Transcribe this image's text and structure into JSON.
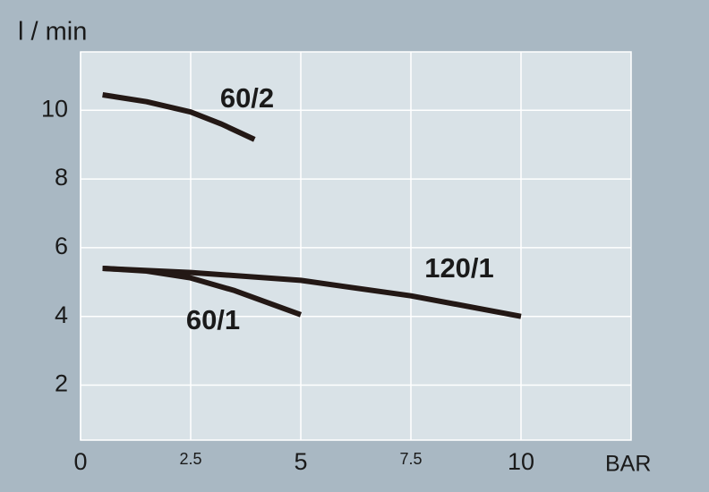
{
  "chart_data": {
    "type": "line",
    "x_label": "BAR",
    "y_label": "l / min",
    "xlim": [
      0,
      12.5
    ],
    "ylim": [
      0.4,
      11.7
    ],
    "xticks": [
      0,
      2.5,
      5,
      7.5,
      10
    ],
    "yticks": [
      2,
      4,
      6,
      8,
      10
    ],
    "grid": true,
    "series": [
      {
        "name": "60/2",
        "color": "#231815",
        "x": [
          0.5,
          1.5,
          2.5,
          3.2,
          3.95
        ],
        "values": [
          10.45,
          10.25,
          9.95,
          9.6,
          9.15
        ]
      },
      {
        "name": "120/1",
        "color": "#231815",
        "x": [
          0.5,
          2.5,
          5,
          7.5,
          10
        ],
        "values": [
          5.4,
          5.28,
          5.05,
          4.6,
          4.0
        ]
      },
      {
        "name": "60/1",
        "color": "#231815",
        "x": [
          0.5,
          1.5,
          2.5,
          3.5,
          5
        ],
        "values": [
          5.4,
          5.32,
          5.12,
          4.75,
          4.05
        ]
      }
    ]
  }
}
